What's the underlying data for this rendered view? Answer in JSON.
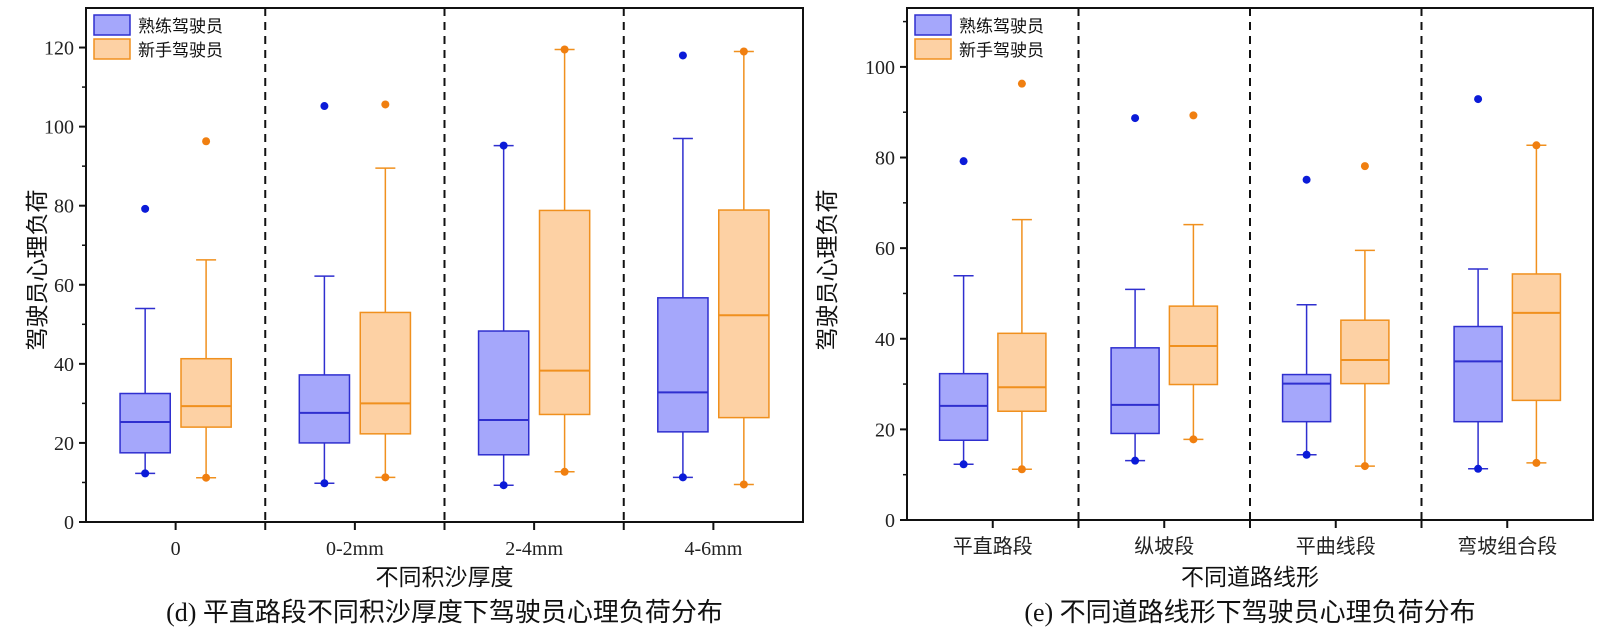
{
  "colors": {
    "experienced_fill": "#a5a7fb",
    "experienced_stroke": "#2f2fcf",
    "experienced_dot": "#0b1bd8",
    "novice_fill": "#fdd1a4",
    "novice_stroke": "#f0901e",
    "novice_dot": "#f07f10"
  },
  "chart_data": [
    {
      "type": "box",
      "caption": "(d) 平直路段不同积沙厚度下驾驶员心理负荷分布",
      "xlabel": "不同积沙厚度",
      "ylabel": "驾驶员心理负荷",
      "ylim": [
        0,
        130
      ],
      "yticks": [
        "0",
        "20",
        "40",
        "60",
        "80",
        "100",
        "120"
      ],
      "ytick_values": [
        0,
        20,
        40,
        60,
        80,
        100,
        120
      ],
      "legend_position": "top-left",
      "categories": [
        "0",
        "0-2mm",
        "2-4mm",
        "4-6mm"
      ],
      "series": [
        {
          "name": "熟练驾驶员",
          "boxes": [
            {
              "whisker_low": 12.3,
              "q1": 17.5,
              "median": 25.3,
              "q3": 32.5,
              "whisker_high": 54,
              "min": 12.3,
              "max": 79.2
            },
            {
              "whisker_low": 9.8,
              "q1": 20,
              "median": 27.6,
              "q3": 37.2,
              "whisker_high": 62.2,
              "min": 9.8,
              "max": 105.2
            },
            {
              "whisker_low": 9.3,
              "q1": 17,
              "median": 25.8,
              "q3": 48.3,
              "whisker_high": 95.2,
              "min": 9.3,
              "max": 95.2
            },
            {
              "whisker_low": 11.3,
              "q1": 22.8,
              "median": 32.8,
              "q3": 56.7,
              "whisker_high": 97,
              "min": 11.3,
              "max": 118
            }
          ]
        },
        {
          "name": "新手驾驶员",
          "boxes": [
            {
              "whisker_low": 11.2,
              "q1": 24,
              "median": 29.3,
              "q3": 41.3,
              "whisker_high": 66.3,
              "min": 11.2,
              "max": 96.3
            },
            {
              "whisker_low": 11.3,
              "q1": 22.3,
              "median": 30,
              "q3": 53,
              "whisker_high": 89.5,
              "min": 11.3,
              "max": 105.6
            },
            {
              "whisker_low": 12.7,
              "q1": 27.2,
              "median": 38.3,
              "q3": 78.8,
              "whisker_high": 119.5,
              "min": 12.7,
              "max": 119.5
            },
            {
              "whisker_low": 9.5,
              "q1": 26.4,
              "median": 52.3,
              "q3": 78.9,
              "whisker_high": 119,
              "min": 9.5,
              "max": 119
            }
          ]
        }
      ]
    },
    {
      "type": "box",
      "caption": "(e) 不同道路线形下驾驶员心理负荷分布",
      "xlabel": "不同道路线形",
      "ylabel": "驾驶员心理负荷",
      "ylim": [
        0,
        113
      ],
      "yticks": [
        "0",
        "20",
        "40",
        "60",
        "80",
        "100"
      ],
      "ytick_values": [
        0,
        20,
        40,
        60,
        80,
        100
      ],
      "legend_position": "top-left",
      "categories": [
        "平直路段",
        "纵坡段",
        "平曲线段",
        "弯坡组合段"
      ],
      "series": [
        {
          "name": "熟练驾驶员",
          "boxes": [
            {
              "whisker_low": 12.3,
              "q1": 17.6,
              "median": 25.2,
              "q3": 32.3,
              "whisker_high": 53.9,
              "min": 12.3,
              "max": 79.2
            },
            {
              "whisker_low": 13.1,
              "q1": 19.1,
              "median": 25.4,
              "q3": 38,
              "whisker_high": 50.9,
              "min": 13.1,
              "max": 88.7
            },
            {
              "whisker_low": 14.4,
              "q1": 21.7,
              "median": 30.1,
              "q3": 32.1,
              "whisker_high": 47.5,
              "min": 14.4,
              "max": 75.1
            },
            {
              "whisker_low": 11.3,
              "q1": 21.7,
              "median": 35,
              "q3": 42.7,
              "whisker_high": 55.4,
              "min": 11.3,
              "max": 92.9
            }
          ]
        },
        {
          "name": "新手驾驶员",
          "boxes": [
            {
              "whisker_low": 11.2,
              "q1": 24,
              "median": 29.3,
              "q3": 41.2,
              "whisker_high": 66.3,
              "min": 11.2,
              "max": 96.3
            },
            {
              "whisker_low": 17.8,
              "q1": 29.9,
              "median": 38.4,
              "q3": 47.2,
              "whisker_high": 65.2,
              "min": 17.8,
              "max": 89.3
            },
            {
              "whisker_low": 11.9,
              "q1": 30.1,
              "median": 35.3,
              "q3": 44.1,
              "whisker_high": 59.5,
              "min": 11.9,
              "max": 78.1
            },
            {
              "whisker_low": 12.6,
              "q1": 26.4,
              "median": 45.7,
              "q3": 54.3,
              "whisker_high": 82.7,
              "min": 12.6,
              "max": 82.7
            }
          ]
        }
      ]
    }
  ]
}
